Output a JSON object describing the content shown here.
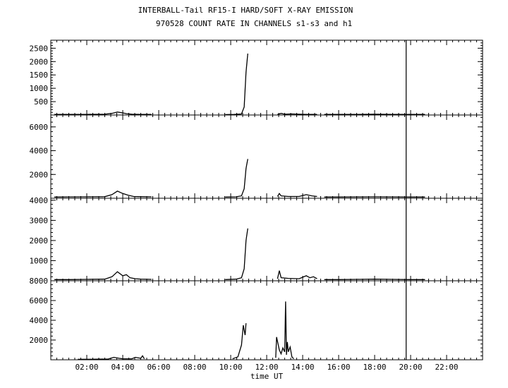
{
  "chart_data": {
    "type": "line",
    "title": "INTERBALL-Tail RF15-I HARD/SOFT X-RAY EMISSION",
    "subtitle": "970528  COUNT RATE IN CHANNELS s1-s3 and h1",
    "xlabel": "time UT",
    "x_unit": "hours UT",
    "xlim": [
      0,
      24
    ],
    "x_ticks": [
      2,
      4,
      6,
      8,
      10,
      12,
      14,
      16,
      18,
      20,
      22
    ],
    "x_tick_labels": [
      "02:00",
      "04:00",
      "06:00",
      "08:00",
      "10:00",
      "12:00",
      "14:00",
      "16:00",
      "18:00",
      "20:00",
      "22:00"
    ],
    "marker_line_x": 19.75,
    "panels": [
      {
        "name": "s1",
        "ylim": [
          0,
          2800
        ],
        "y_ticks": [
          500,
          1000,
          1500,
          2000,
          2500
        ],
        "y_tick_labels": [
          "500",
          "1000",
          "1500",
          "2000",
          "2500"
        ],
        "segments": [
          [
            [
              0.2,
              20
            ],
            [
              1,
              20
            ],
            [
              2,
              25
            ],
            [
              3,
              30
            ],
            [
              3.4,
              60
            ],
            [
              3.7,
              110
            ],
            [
              4,
              80
            ],
            [
              4.2,
              50
            ],
            [
              4.5,
              30
            ],
            [
              5,
              25
            ],
            [
              5.6,
              25
            ]
          ],
          [
            [
              9.7,
              15
            ],
            [
              10.2,
              20
            ],
            [
              10.6,
              40
            ],
            [
              10.75,
              300
            ],
            [
              10.85,
              1600
            ],
            [
              10.95,
              2300
            ]
          ],
          [
            [
              12.6,
              20
            ],
            [
              12.8,
              60
            ],
            [
              13,
              30
            ],
            [
              13.4,
              40
            ],
            [
              13.8,
              30
            ],
            [
              14.2,
              25
            ],
            [
              14.8,
              20
            ]
          ],
          [
            [
              15.2,
              20
            ],
            [
              16,
              20
            ],
            [
              17,
              20
            ],
            [
              18,
              30
            ],
            [
              19,
              25
            ],
            [
              20,
              25
            ],
            [
              20.8,
              20
            ]
          ]
        ]
      },
      {
        "name": "s2",
        "ylim": [
          0,
          7000
        ],
        "y_ticks": [
          2000,
          4000,
          6000
        ],
        "y_tick_labels": [
          "2000",
          "4000",
          "6000"
        ],
        "segments": [
          [
            [
              0.2,
              100
            ],
            [
              1,
              110
            ],
            [
              2,
              120
            ],
            [
              3,
              130
            ],
            [
              3.4,
              300
            ],
            [
              3.7,
              600
            ],
            [
              4,
              400
            ],
            [
              4.3,
              250
            ],
            [
              4.6,
              150
            ],
            [
              5,
              130
            ],
            [
              5.6,
              120
            ]
          ],
          [
            [
              9.7,
              100
            ],
            [
              10.3,
              120
            ],
            [
              10.6,
              200
            ],
            [
              10.75,
              800
            ],
            [
              10.85,
              2500
            ],
            [
              10.95,
              3300
            ]
          ],
          [
            [
              12.6,
              150
            ],
            [
              12.7,
              400
            ],
            [
              12.8,
              200
            ],
            [
              13.2,
              150
            ],
            [
              13.8,
              150
            ],
            [
              14.2,
              300
            ],
            [
              14.5,
              200
            ],
            [
              14.8,
              150
            ]
          ],
          [
            [
              15.2,
              100
            ],
            [
              16,
              100
            ],
            [
              17,
              110
            ],
            [
              18,
              120
            ],
            [
              19,
              110
            ],
            [
              20,
              100
            ],
            [
              20.8,
              100
            ]
          ]
        ]
      },
      {
        "name": "s3",
        "ylim": [
          0,
          4100
        ],
        "y_ticks": [
          1000,
          2000,
          3000,
          4000
        ],
        "y_tick_labels": [
          "1000",
          "2000",
          "3000",
          "4000"
        ],
        "segments": [
          [
            [
              0.2,
              60
            ],
            [
              1,
              60
            ],
            [
              2,
              70
            ],
            [
              3,
              80
            ],
            [
              3.4,
              200
            ],
            [
              3.7,
              450
            ],
            [
              4,
              250
            ],
            [
              4.2,
              300
            ],
            [
              4.4,
              150
            ],
            [
              4.7,
              100
            ],
            [
              5,
              80
            ],
            [
              5.6,
              70
            ]
          ],
          [
            [
              9.7,
              60
            ],
            [
              10.3,
              80
            ],
            [
              10.6,
              150
            ],
            [
              10.75,
              600
            ],
            [
              10.85,
              2000
            ],
            [
              10.95,
              2600
            ]
          ],
          [
            [
              12.6,
              100
            ],
            [
              12.7,
              500
            ],
            [
              12.8,
              150
            ],
            [
              13.2,
              120
            ],
            [
              13.8,
              100
            ],
            [
              14.2,
              250
            ],
            [
              14.4,
              150
            ],
            [
              14.6,
              200
            ],
            [
              14.8,
              100
            ]
          ],
          [
            [
              15.2,
              60
            ],
            [
              16,
              60
            ],
            [
              17,
              70
            ],
            [
              18,
              80
            ],
            [
              19,
              70
            ],
            [
              20,
              60
            ],
            [
              20.8,
              60
            ]
          ]
        ]
      },
      {
        "name": "h1",
        "ylim": [
          0,
          8000
        ],
        "y_ticks": [
          2000,
          4000,
          6000,
          8000
        ],
        "y_tick_labels": [
          "2000",
          "4000",
          "6000",
          "8000"
        ],
        "segments": [
          [
            [
              1.5,
              50
            ],
            [
              2.5,
              60
            ],
            [
              3.2,
              80
            ],
            [
              3.5,
              250
            ],
            [
              3.8,
              150
            ],
            [
              4,
              100
            ],
            [
              4.5,
              100
            ],
            [
              4.7,
              250
            ],
            [
              5,
              150
            ],
            [
              5.1,
              400
            ],
            [
              5.2,
              100
            ]
          ],
          [
            [
              10.1,
              100
            ],
            [
              10.4,
              300
            ],
            [
              10.6,
              1500
            ],
            [
              10.7,
              3500
            ],
            [
              10.8,
              2500
            ],
            [
              10.85,
              3700
            ]
          ],
          [
            [
              12.5,
              200
            ],
            [
              12.55,
              2300
            ],
            [
              12.7,
              1000
            ],
            [
              12.8,
              600
            ],
            [
              12.9,
              1200
            ],
            [
              13,
              800
            ],
            [
              13.05,
              5900
            ],
            [
              13.1,
              500
            ],
            [
              13.15,
              1800
            ],
            [
              13.2,
              800
            ],
            [
              13.3,
              1300
            ],
            [
              13.4,
              300
            ],
            [
              13.5,
              100
            ]
          ]
        ]
      }
    ]
  }
}
